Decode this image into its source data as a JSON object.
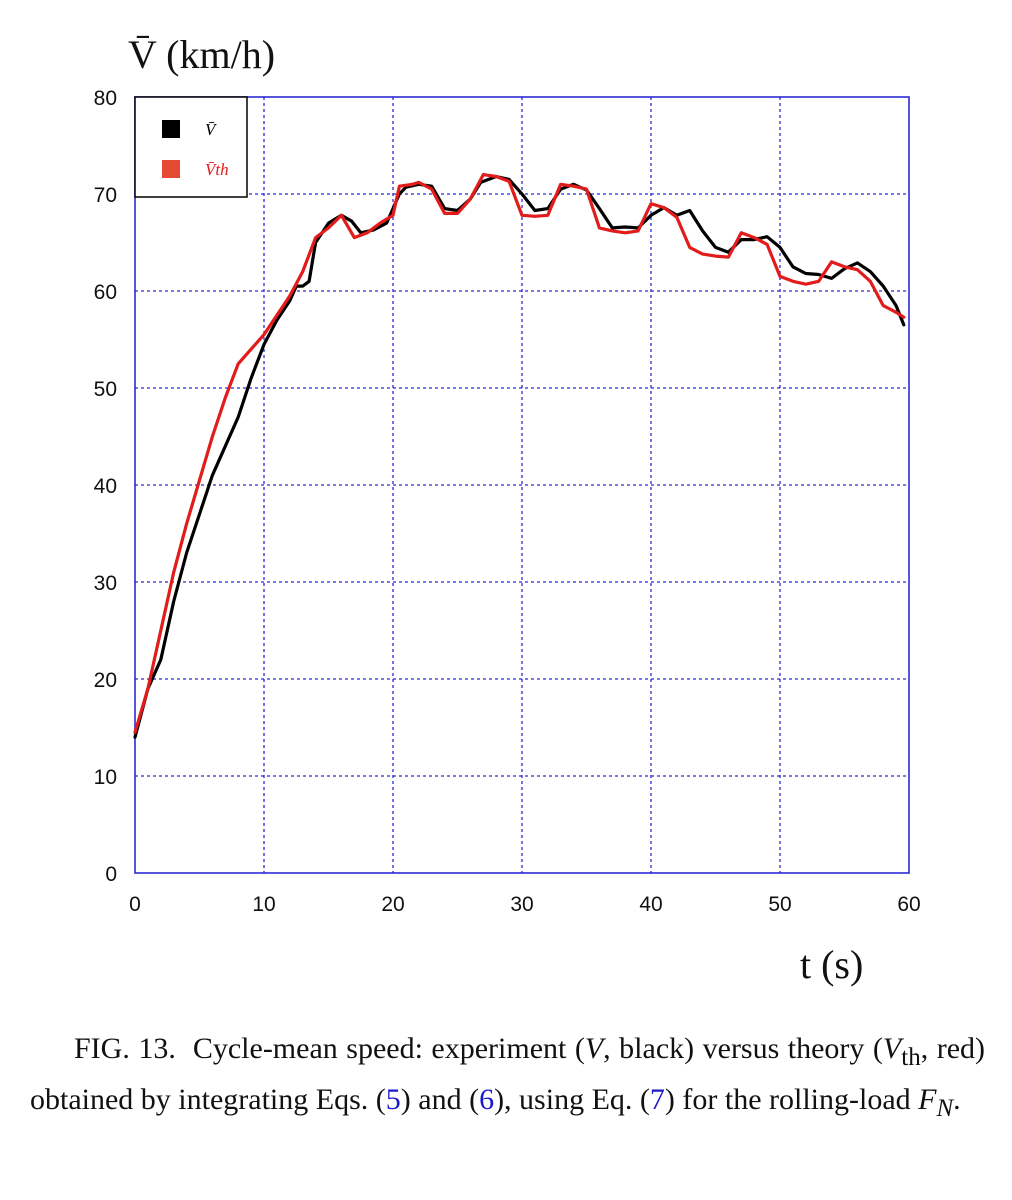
{
  "chart_data": {
    "type": "line",
    "title": "",
    "ylabel": "V̄ (km/h)",
    "xlabel": "t (s)",
    "xlim": [
      0,
      60
    ],
    "ylim": [
      0,
      80
    ],
    "xticks": [
      "0",
      "10",
      "20",
      "30",
      "40",
      "50",
      "60"
    ],
    "yticks": [
      "0",
      "10",
      "20",
      "30",
      "40",
      "50",
      "60",
      "70",
      "80"
    ],
    "grid": true,
    "legend_position": "top-left",
    "series": [
      {
        "name": "V̄",
        "color": "#000000",
        "points": [
          [
            0,
            14
          ],
          [
            1,
            19
          ],
          [
            2,
            22
          ],
          [
            3,
            28
          ],
          [
            4,
            33
          ],
          [
            5,
            37
          ],
          [
            6,
            41
          ],
          [
            7,
            44
          ],
          [
            8,
            47
          ],
          [
            9,
            51
          ],
          [
            10,
            54.5
          ],
          [
            11,
            57
          ],
          [
            12,
            59
          ],
          [
            12.5,
            60.5
          ],
          [
            13,
            60.5
          ],
          [
            13.5,
            61
          ],
          [
            14,
            65
          ],
          [
            15,
            67
          ],
          [
            16,
            67.8
          ],
          [
            16.8,
            67.2
          ],
          [
            17.5,
            66
          ],
          [
            18.5,
            66.3
          ],
          [
            19.5,
            67
          ],
          [
            20.5,
            70
          ],
          [
            21,
            70.7
          ],
          [
            22,
            71
          ],
          [
            23,
            70.8
          ],
          [
            24,
            68.5
          ],
          [
            25,
            68.3
          ],
          [
            26,
            69.5
          ],
          [
            26.8,
            71.2
          ],
          [
            28,
            71.8
          ],
          [
            29,
            71.5
          ],
          [
            30,
            70
          ],
          [
            31,
            68.3
          ],
          [
            32,
            68.5
          ],
          [
            33,
            70.5
          ],
          [
            34,
            71
          ],
          [
            35,
            70.4
          ],
          [
            36,
            68.5
          ],
          [
            37,
            66.5
          ],
          [
            38,
            66.6
          ],
          [
            39,
            66.5
          ],
          [
            40,
            67.8
          ],
          [
            41,
            68.6
          ],
          [
            42,
            67.8
          ],
          [
            43,
            68.3
          ],
          [
            44,
            66.2
          ],
          [
            45,
            64.5
          ],
          [
            46,
            64
          ],
          [
            47,
            65.3
          ],
          [
            48,
            65.3
          ],
          [
            49,
            65.6
          ],
          [
            50,
            64.5
          ],
          [
            51,
            62.5
          ],
          [
            52,
            61.8
          ],
          [
            53,
            61.7
          ],
          [
            54,
            61.3
          ],
          [
            55,
            62.3
          ],
          [
            56,
            62.9
          ],
          [
            57,
            62
          ],
          [
            58,
            60.5
          ],
          [
            59,
            58.5
          ],
          [
            59.6,
            56.5
          ]
        ]
      },
      {
        "name": "V̄th",
        "color": "#e21b1b",
        "points": [
          [
            0,
            14.5
          ],
          [
            1,
            19
          ],
          [
            2,
            25
          ],
          [
            3,
            31
          ],
          [
            4,
            36
          ],
          [
            5,
            40.5
          ],
          [
            6,
            45
          ],
          [
            7,
            49
          ],
          [
            8,
            52.5
          ],
          [
            9,
            54
          ],
          [
            10,
            55.5
          ],
          [
            11,
            57.5
          ],
          [
            12,
            59.5
          ],
          [
            13,
            62
          ],
          [
            14,
            65.5
          ],
          [
            15,
            66.5
          ],
          [
            16,
            67.8
          ],
          [
            17,
            65.5
          ],
          [
            18,
            66
          ],
          [
            19,
            67
          ],
          [
            20,
            67.8
          ],
          [
            20.5,
            70.8
          ],
          [
            21.5,
            71
          ],
          [
            22,
            71.2
          ],
          [
            23,
            70.5
          ],
          [
            24,
            68
          ],
          [
            25,
            68
          ],
          [
            26,
            69.5
          ],
          [
            27,
            72
          ],
          [
            28,
            71.8
          ],
          [
            29,
            71.3
          ],
          [
            30,
            67.8
          ],
          [
            31,
            67.7
          ],
          [
            32,
            67.8
          ],
          [
            33,
            71
          ],
          [
            34,
            70.8
          ],
          [
            35,
            70.5
          ],
          [
            36,
            66.5
          ],
          [
            37,
            66.2
          ],
          [
            38,
            66
          ],
          [
            39,
            66.2
          ],
          [
            40,
            69
          ],
          [
            41,
            68.6
          ],
          [
            42,
            67.6
          ],
          [
            43,
            64.5
          ],
          [
            44,
            63.8
          ],
          [
            45,
            63.6
          ],
          [
            46,
            63.5
          ],
          [
            47,
            66
          ],
          [
            48,
            65.5
          ],
          [
            49,
            64.8
          ],
          [
            50,
            61.5
          ],
          [
            51,
            61
          ],
          [
            52,
            60.7
          ],
          [
            53,
            61
          ],
          [
            54,
            63
          ],
          [
            55,
            62.5
          ],
          [
            56,
            62.2
          ],
          [
            57,
            61
          ],
          [
            58,
            58.5
          ],
          [
            59,
            57.8
          ],
          [
            59.6,
            57.3
          ]
        ]
      }
    ]
  },
  "caption": {
    "fig_label": "FIG. 13.",
    "text_1": "Cycle-mean speed: experiment (",
    "var_v": "V",
    "text_2": ", black) versus theory (",
    "var_vth": "V",
    "vth_sub": "th",
    "text_3": ", red) obtained by integrating Eqs. (",
    "ref_eq5": "5",
    "text_4": ") and (",
    "ref_eq6": "6",
    "text_5": "), using Eq. (",
    "ref_eq7": "7",
    "text_6": ") for the rolling-load ",
    "var_f": "F",
    "f_sub": "N",
    "text_7": "."
  }
}
